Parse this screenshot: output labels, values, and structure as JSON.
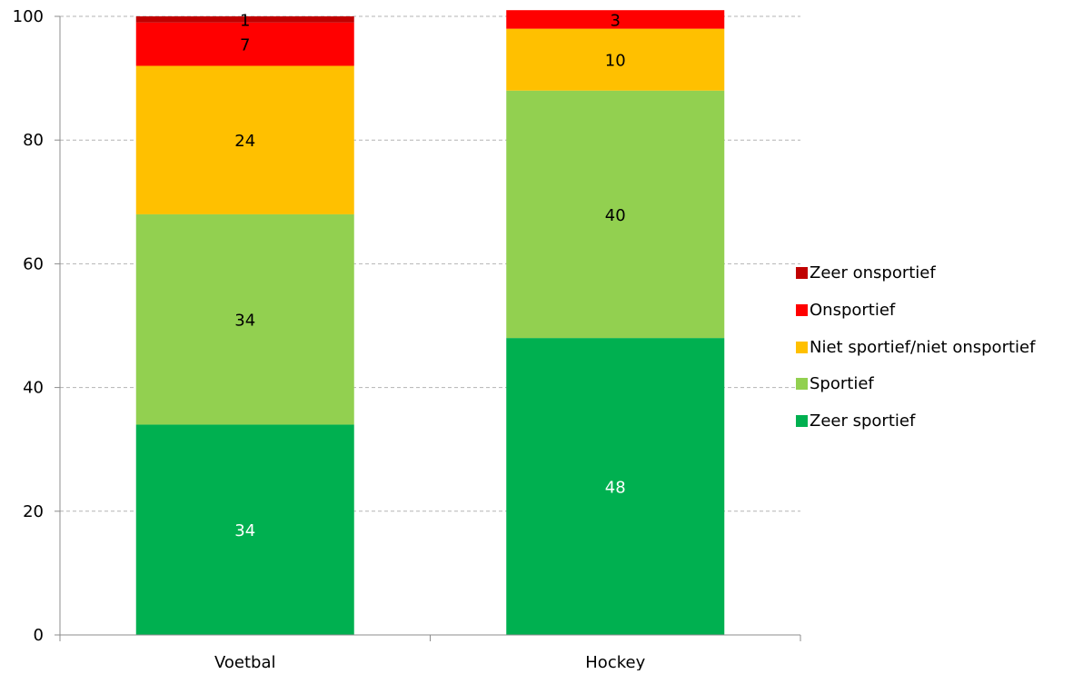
{
  "chart_data": {
    "type": "bar",
    "stacked": true,
    "categories": [
      "Voetbal",
      "Hockey"
    ],
    "series": [
      {
        "name": "Zeer sportief",
        "values": [
          34,
          48
        ],
        "color": "#00b050",
        "label_color": "#ffffff"
      },
      {
        "name": "Sportief",
        "values": [
          34,
          40
        ],
        "color": "#92d050",
        "label_color": "#000000"
      },
      {
        "name": "Niet sportief/niet onsportief",
        "values": [
          24,
          10
        ],
        "color": "#ffc000",
        "label_color": "#000000"
      },
      {
        "name": "Onsportief",
        "values": [
          7,
          3
        ],
        "color": "#ff0000",
        "label_color": "#000000"
      },
      {
        "name": "Zeer onsportief",
        "values": [
          1,
          0
        ],
        "color": "#c00000",
        "label_color": "#000000"
      }
    ],
    "ylim": [
      0,
      100
    ],
    "yticks": [
      "0",
      "20",
      "40",
      "60",
      "80",
      "100"
    ],
    "grid": true,
    "legend_position": "right",
    "title": "",
    "xlabel": "",
    "ylabel": ""
  },
  "legend": {
    "items": [
      {
        "label": "Zeer onsportief",
        "color": "#c00000"
      },
      {
        "label": "Onsportief",
        "color": "#ff0000"
      },
      {
        "label": "Niet sportief/niet onsportief",
        "color": "#ffc000"
      },
      {
        "label": "Sportief",
        "color": "#92d050"
      },
      {
        "label": "Zeer sportief",
        "color": "#00b050"
      }
    ]
  }
}
